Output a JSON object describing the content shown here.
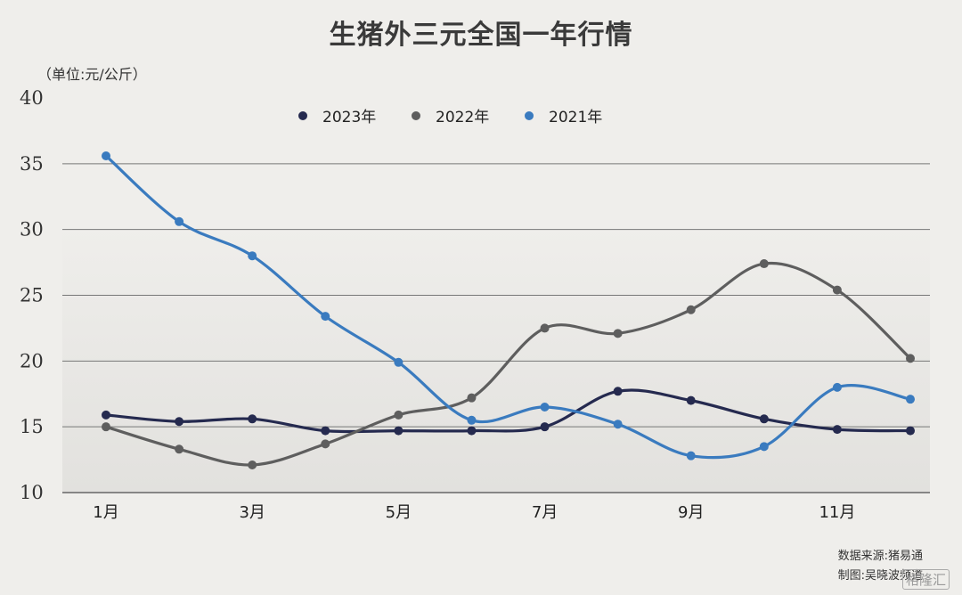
{
  "chart_data": {
    "type": "line",
    "title": "生猪外三元全国一年行情",
    "unit_label": "（单位:元/公斤）",
    "xlabel": "",
    "ylabel": "",
    "ylim": [
      10,
      40
    ],
    "y_ticks": [
      10,
      15,
      20,
      25,
      30,
      35,
      40
    ],
    "x": [
      1,
      2,
      3,
      4,
      5,
      6,
      7,
      8,
      9,
      10,
      11,
      12
    ],
    "x_tick_labels": [
      {
        "x": 1,
        "label": "1月"
      },
      {
        "x": 3,
        "label": "3月"
      },
      {
        "x": 5,
        "label": "5月"
      },
      {
        "x": 7,
        "label": "7月"
      },
      {
        "x": 9,
        "label": "9月"
      },
      {
        "x": 11,
        "label": "11月"
      }
    ],
    "grid": true,
    "legend_position": "top-center",
    "series": [
      {
        "name": "2023年",
        "color": "#252a4f",
        "values": [
          15.9,
          15.4,
          15.6,
          14.7,
          14.7,
          14.7,
          15.0,
          17.7,
          17.0,
          15.6,
          14.8,
          14.7
        ]
      },
      {
        "name": "2022年",
        "color": "#5e5e5e",
        "values": [
          15.0,
          13.3,
          12.1,
          13.7,
          15.9,
          17.2,
          22.5,
          22.1,
          23.9,
          27.4,
          25.4,
          20.2
        ]
      },
      {
        "name": "2021年",
        "color": "#3a7bbf",
        "values": [
          35.6,
          30.6,
          28.0,
          23.4,
          19.9,
          15.5,
          16.5,
          15.2,
          12.8,
          13.5,
          18.0,
          17.1
        ]
      }
    ]
  },
  "footer": {
    "source": "数据来源:猪易通",
    "author": "制图:吴晓波频道"
  },
  "watermark": "格隆汇"
}
